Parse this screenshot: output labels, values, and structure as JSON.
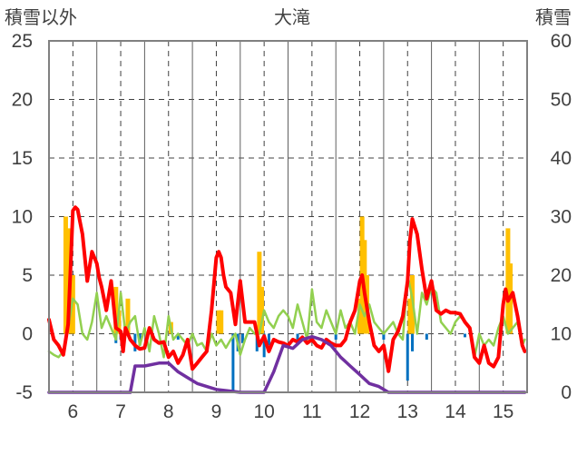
{
  "chart_data": {
    "type": "bar",
    "title": "大滝",
    "ylabel_left": "積雪以外",
    "ylabel_right": "積雪",
    "ylim_left": [
      -5,
      25
    ],
    "ylim_right": [
      0,
      60
    ],
    "yticks_left": [
      "25",
      "20",
      "15",
      "10",
      "5",
      "0",
      "-5"
    ],
    "yticks_right": [
      "60",
      "50",
      "40",
      "30",
      "20",
      "10",
      "0"
    ],
    "x_labels": [
      "6",
      "7",
      "8",
      "9",
      "10",
      "11",
      "12",
      "13",
      "14",
      "15"
    ],
    "x_range": [
      5.5,
      15.5
    ],
    "grid": true,
    "colors": {
      "temperature": "#ff0000",
      "green_series": "#92d050",
      "snow_depth": "#7030a0",
      "bar_positive": "#ffc000",
      "bar_negative": "#0070c0",
      "axis": "#808080",
      "grid": "#404040"
    },
    "series": [
      {
        "axis": "left",
        "color": "#ff0000",
        "x": [
          5.5,
          5.6,
          5.7,
          5.8,
          5.9,
          5.95,
          6.0,
          6.05,
          6.1,
          6.15,
          6.2,
          6.3,
          6.4,
          6.5,
          6.55,
          6.6,
          6.7,
          6.8,
          6.9,
          7.0,
          7.05,
          7.1,
          7.2,
          7.3,
          7.4,
          7.5,
          7.6,
          7.7,
          7.8,
          7.9,
          8.0,
          8.1,
          8.2,
          8.3,
          8.4,
          8.5,
          8.6,
          8.7,
          8.8,
          8.9,
          9.0,
          9.05,
          9.1,
          9.15,
          9.2,
          9.3,
          9.4,
          9.5,
          9.6,
          9.7,
          9.8,
          9.9,
          10.0,
          10.1,
          10.2,
          10.3,
          10.4,
          10.5,
          10.6,
          10.7,
          10.8,
          10.9,
          11.0,
          11.1,
          11.2,
          11.3,
          11.4,
          11.5,
          11.6,
          11.7,
          11.8,
          11.9,
          12.0,
          12.05,
          12.1,
          12.2,
          12.3,
          12.4,
          12.5,
          12.6,
          12.7,
          12.8,
          12.9,
          13.0,
          13.05,
          13.1,
          13.2,
          13.3,
          13.4,
          13.5,
          13.6,
          13.7,
          13.8,
          13.9,
          14.0,
          14.1,
          14.2,
          14.3,
          14.4,
          14.5,
          14.6,
          14.7,
          14.8,
          14.9,
          15.0,
          15.05,
          15.1,
          15.2,
          15.3,
          15.4,
          15.45
        ],
        "y": [
          1.2,
          -0.5,
          -1.0,
          -1.8,
          0.8,
          5.5,
          10.5,
          10.8,
          10.6,
          9.5,
          8.5,
          4.5,
          7.0,
          6.0,
          4.8,
          4.0,
          2.0,
          4.5,
          0.5,
          0.2,
          -1.5,
          0.5,
          -0.5,
          -1.0,
          -1.3,
          -1.2,
          0.5,
          -0.5,
          -0.8,
          -0.7,
          -2.0,
          -1.5,
          -2.5,
          -1.8,
          -0.5,
          -3.0,
          -2.5,
          -2.0,
          -1.5,
          2.0,
          6.5,
          7.0,
          6.5,
          5.0,
          4.0,
          3.5,
          0.8,
          4.5,
          1.0,
          1.0,
          1.0,
          -1.0,
          -0.2,
          -1.5,
          -0.5,
          -0.7,
          -0.8,
          -1.0,
          -0.5,
          -0.7,
          -0.3,
          -0.8,
          -0.5,
          -1.0,
          -1.2,
          -0.5,
          -0.8,
          -1.0,
          -1.0,
          -0.5,
          1.0,
          2.0,
          4.5,
          5.0,
          3.5,
          1.0,
          -1.0,
          -1.5,
          -1.0,
          -3.2,
          -0.5,
          0.2,
          1.5,
          4.5,
          8.0,
          9.8,
          8.5,
          5.5,
          3.0,
          4.5,
          2.0,
          1.7,
          2.0,
          1.8,
          1.8,
          1.7,
          1.0,
          0.5,
          -2.0,
          -2.5,
          -1.0,
          -2.5,
          -2.8,
          -2.0,
          2.5,
          3.8,
          2.8,
          3.5,
          1.5,
          -1.0,
          -1.5
        ]
      },
      {
        "axis": "left",
        "color": "#92d050",
        "x": [
          5.5,
          5.6,
          5.7,
          5.8,
          5.9,
          6.0,
          6.1,
          6.2,
          6.3,
          6.4,
          6.5,
          6.6,
          6.7,
          6.8,
          6.9,
          7.0,
          7.1,
          7.2,
          7.3,
          7.4,
          7.5,
          7.6,
          7.7,
          7.8,
          7.9,
          8.0,
          8.1,
          8.2,
          8.3,
          8.4,
          8.5,
          8.6,
          8.7,
          8.8,
          8.9,
          9.0,
          9.1,
          9.2,
          9.3,
          9.4,
          9.5,
          9.6,
          9.7,
          9.8,
          9.9,
          10.0,
          10.1,
          10.2,
          10.3,
          10.4,
          10.5,
          10.6,
          10.7,
          10.8,
          10.9,
          11.0,
          11.1,
          11.2,
          11.3,
          11.4,
          11.5,
          11.6,
          11.7,
          11.8,
          11.9,
          12.0,
          12.1,
          12.2,
          12.3,
          12.4,
          12.5,
          12.6,
          12.7,
          12.8,
          12.9,
          13.0,
          13.1,
          13.2,
          13.3,
          13.4,
          13.5,
          13.6,
          13.7,
          13.8,
          13.9,
          14.0,
          14.1,
          14.2,
          14.3,
          14.4,
          14.5,
          14.6,
          14.7,
          14.8,
          14.9,
          15.0,
          15.1,
          15.2,
          15.3,
          15.4,
          15.45
        ],
        "y": [
          -1.5,
          -1.8,
          -2.0,
          -1.5,
          0.5,
          3.0,
          2.5,
          0.0,
          -0.5,
          1.0,
          3.5,
          0.5,
          1.5,
          0.5,
          -0.5,
          3.5,
          0.0,
          1.0,
          1.5,
          -1.0,
          0.5,
          -1.5,
          1.5,
          0.0,
          -2.0,
          1.5,
          -0.5,
          0.0,
          -0.5,
          -1.0,
          0.0,
          -1.0,
          -0.8,
          -1.5,
          0.0,
          -1.0,
          -0.5,
          -1.2,
          -0.5,
          0.0,
          -1.8,
          -0.5,
          0.5,
          0.0,
          0.0,
          2.0,
          1.0,
          0.5,
          1.5,
          2.0,
          1.5,
          0.5,
          2.5,
          1.0,
          -0.5,
          3.8,
          1.0,
          0.5,
          2.0,
          1.0,
          0.0,
          2.0,
          0.5,
          1.0,
          0.0,
          2.5,
          1.5,
          2.5,
          1.0,
          0.5,
          0.0,
          0.5,
          1.0,
          0.0,
          -0.5,
          5.0,
          3.0,
          0.0,
          3.5,
          2.5,
          4.0,
          3.5,
          1.0,
          0.5,
          0.0,
          1.0,
          1.5,
          1.0,
          0.5,
          -2.0,
          0.0,
          -1.0,
          -0.5,
          -1.0,
          0.5,
          1.5,
          0.0,
          0.5,
          1.0,
          -1.0,
          -0.5
        ]
      },
      {
        "axis": "right",
        "color": "#7030a0",
        "x": [
          5.5,
          7.2,
          7.3,
          7.5,
          7.8,
          8.0,
          8.2,
          8.4,
          8.6,
          8.8,
          9.0,
          9.5,
          9.8,
          10.0,
          10.2,
          10.4,
          10.6,
          10.8,
          11.0,
          11.2,
          11.4,
          11.6,
          11.8,
          12.0,
          12.2,
          12.4,
          12.6,
          13.0,
          15.45
        ],
        "y": [
          0,
          0,
          4.5,
          4.5,
          5.0,
          5.0,
          3.5,
          2.5,
          1.5,
          1.0,
          0.5,
          0,
          0,
          0,
          3.5,
          8.0,
          7.5,
          9.0,
          9.5,
          9.0,
          8.0,
          6.0,
          4.5,
          3.0,
          1.5,
          1.0,
          0,
          0,
          0
        ]
      }
    ],
    "bars": {
      "axis": "left",
      "positive": [
        {
          "x": 5.85,
          "value": 10.0
        },
        {
          "x": 5.92,
          "value": 9.0
        },
        {
          "x": 6.0,
          "value": 5.0
        },
        {
          "x": 6.9,
          "value": 4.0
        },
        {
          "x": 6.96,
          "value": 2.0
        },
        {
          "x": 7.15,
          "value": 3.0
        },
        {
          "x": 8.05,
          "value": 1.0
        },
        {
          "x": 9.05,
          "value": 2.0
        },
        {
          "x": 9.1,
          "value": 2.0
        },
        {
          "x": 9.9,
          "value": 7.0
        },
        {
          "x": 9.95,
          "value": 4.0
        },
        {
          "x": 12.0,
          "value": 3.0
        },
        {
          "x": 12.05,
          "value": 10.0
        },
        {
          "x": 12.1,
          "value": 8.0
        },
        {
          "x": 12.15,
          "value": 5.0
        },
        {
          "x": 13.05,
          "value": 3.0
        },
        {
          "x": 13.1,
          "value": 5.0
        },
        {
          "x": 15.1,
          "value": 9.0
        },
        {
          "x": 15.15,
          "value": 6.0
        }
      ],
      "negative": [
        {
          "x": 6.9,
          "value": -0.8
        },
        {
          "x": 7.0,
          "value": -0.5
        },
        {
          "x": 7.3,
          "value": -1.5
        },
        {
          "x": 7.4,
          "value": -1.0
        },
        {
          "x": 8.2,
          "value": -0.5
        },
        {
          "x": 9.35,
          "value": -5.0
        },
        {
          "x": 9.45,
          "value": -1.5
        },
        {
          "x": 9.55,
          "value": -0.8
        },
        {
          "x": 9.85,
          "value": -1.5
        },
        {
          "x": 10.0,
          "value": -2.0
        },
        {
          "x": 10.1,
          "value": -1.0
        },
        {
          "x": 10.7,
          "value": -0.5
        },
        {
          "x": 11.5,
          "value": -0.5
        },
        {
          "x": 12.5,
          "value": -0.5
        },
        {
          "x": 13.0,
          "value": -4.0
        },
        {
          "x": 13.1,
          "value": -1.5
        },
        {
          "x": 13.4,
          "value": -0.5
        },
        {
          "x": 14.2,
          "value": -0.3
        }
      ]
    }
  }
}
